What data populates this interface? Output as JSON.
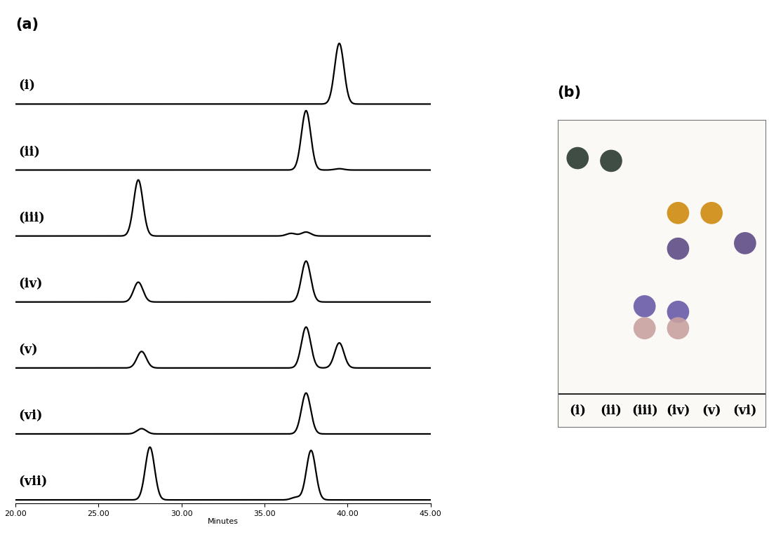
{
  "chart_data": [
    {
      "type": "line",
      "title": "(a)",
      "x_label": "Minutes",
      "xlim": [
        20,
        45
      ],
      "xticks": [
        {
          "value": 20,
          "label": "20.00"
        },
        {
          "value": 25,
          "label": "25.00"
        },
        {
          "value": 30,
          "label": "30.00"
        },
        {
          "value": 35,
          "label": "35.00"
        },
        {
          "value": 40,
          "label": "40.00"
        },
        {
          "value": 45,
          "label": "45.00"
        }
      ],
      "tick_labels": "x",
      "color": "#000000",
      "series": [
        {
          "name": "(i)",
          "x": [
            39.5
          ],
          "values": [
            0.92
          ]
        },
        {
          "name": "(ii)",
          "x": [
            37.5,
            39.5
          ],
          "values": [
            0.9,
            0.02
          ]
        },
        {
          "name": "(iii)",
          "x": [
            27.4,
            36.6,
            37.5
          ],
          "values": [
            0.85,
            0.04,
            0.06
          ]
        },
        {
          "name": "(iv)",
          "x": [
            27.4,
            37.5
          ],
          "values": [
            0.3,
            0.62
          ]
        },
        {
          "name": "(v)",
          "x": [
            27.6,
            37.5,
            39.5
          ],
          "values": [
            0.25,
            0.62,
            0.38
          ]
        },
        {
          "name": "(vi)",
          "x": [
            27.6,
            37.5
          ],
          "values": [
            0.08,
            0.62
          ]
        },
        {
          "name": "(vii)",
          "x": [
            28.1,
            36.9,
            37.8
          ],
          "values": [
            0.8,
            0.04,
            0.75
          ]
        }
      ]
    },
    {
      "type": "scatter",
      "title": "(b)",
      "categories": [
        "(i)",
        "(ii)",
        "(iii)",
        "(iv)",
        "(v)",
        "(vi)"
      ],
      "ylim": [
        -0.12,
        1.0
      ],
      "tick_labels": false,
      "series": [
        {
          "color": "#2b3a30",
          "values": [
            0.86,
            0.85,
            null,
            null,
            null,
            null
          ]
        },
        {
          "color": "#d08a10",
          "values": [
            null,
            null,
            null,
            0.66,
            0.66,
            null
          ]
        },
        {
          "color": "#5e4c86",
          "values": [
            null,
            null,
            null,
            0.53,
            null,
            0.55
          ]
        },
        {
          "color": "#6a5aa8",
          "values": [
            null,
            null,
            0.32,
            0.3,
            null,
            null
          ]
        },
        {
          "color": "#c8a0a0",
          "values": [
            null,
            null,
            0.24,
            0.24,
            null,
            null
          ]
        }
      ]
    }
  ]
}
